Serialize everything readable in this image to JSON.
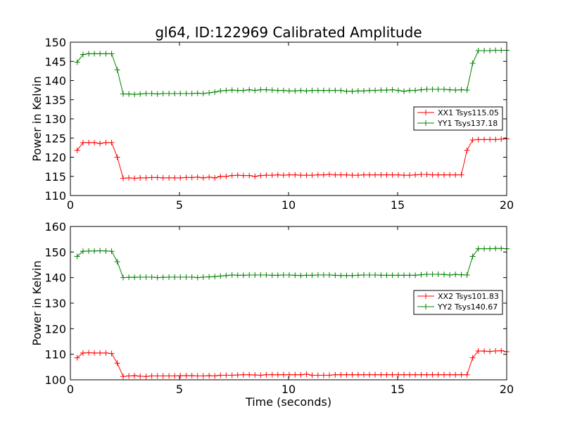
{
  "chart_data": [
    {
      "type": "line",
      "title": "gl64, ID:122969 Calibrated Amplitude",
      "xlabel": "",
      "ylabel": "Power in Kelvin",
      "xlim": [
        0,
        20
      ],
      "ylim": [
        110,
        150
      ],
      "xticks": [
        0,
        5,
        10,
        15,
        20
      ],
      "yticks": [
        110,
        115,
        120,
        125,
        130,
        135,
        140,
        145,
        150
      ],
      "grid": false,
      "legend_position": "right",
      "x": [
        0.31,
        0.58,
        0.84,
        1.1,
        1.36,
        1.63,
        1.89,
        2.15,
        2.42,
        2.68,
        2.94,
        3.2,
        3.47,
        3.73,
        3.99,
        4.25,
        4.52,
        4.78,
        5.04,
        5.31,
        5.57,
        5.83,
        6.09,
        6.36,
        6.62,
        6.88,
        7.14,
        7.41,
        7.67,
        7.93,
        8.2,
        8.46,
        8.72,
        8.98,
        9.25,
        9.51,
        9.77,
        10.03,
        10.3,
        10.56,
        10.82,
        11.08,
        11.35,
        11.61,
        11.87,
        12.14,
        12.4,
        12.66,
        12.92,
        13.19,
        13.45,
        13.71,
        13.97,
        14.24,
        14.5,
        14.76,
        15.03,
        15.29,
        15.55,
        15.81,
        16.08,
        16.34,
        16.6,
        16.86,
        17.13,
        17.39,
        17.65,
        17.92,
        18.18,
        18.44,
        18.7,
        18.97,
        19.23,
        19.49,
        19.75,
        20.0
      ],
      "series": [
        {
          "name": "XX1 Tsys115.05",
          "color": "#ff0000",
          "values": [
            121.8,
            123.8,
            123.8,
            123.8,
            123.6,
            123.8,
            123.8,
            120.0,
            114.5,
            114.6,
            114.5,
            114.6,
            114.6,
            114.7,
            114.7,
            114.6,
            114.6,
            114.6,
            114.6,
            114.7,
            114.7,
            114.8,
            114.6,
            114.8,
            114.6,
            115.0,
            115.0,
            115.2,
            115.3,
            115.2,
            115.2,
            115.0,
            115.2,
            115.3,
            115.3,
            115.4,
            115.3,
            115.4,
            115.4,
            115.3,
            115.3,
            115.3,
            115.4,
            115.4,
            115.5,
            115.4,
            115.4,
            115.4,
            115.3,
            115.3,
            115.4,
            115.4,
            115.4,
            115.4,
            115.4,
            115.4,
            115.4,
            115.3,
            115.3,
            115.4,
            115.5,
            115.5,
            115.4,
            115.4,
            115.4,
            115.4,
            115.4,
            115.4,
            121.8,
            124.5,
            124.6,
            124.6,
            124.6,
            124.6,
            124.7,
            124.8
          ]
        },
        {
          "name": "YY1 Tsys137.18",
          "color": "#008000",
          "values": [
            144.8,
            146.8,
            147.0,
            147.0,
            147.0,
            147.0,
            147.0,
            142.8,
            136.5,
            136.5,
            136.4,
            136.5,
            136.6,
            136.6,
            136.5,
            136.6,
            136.6,
            136.6,
            136.6,
            136.6,
            136.6,
            136.7,
            136.6,
            136.8,
            137.0,
            137.3,
            137.4,
            137.5,
            137.4,
            137.4,
            137.6,
            137.4,
            137.6,
            137.6,
            137.5,
            137.4,
            137.4,
            137.3,
            137.3,
            137.4,
            137.3,
            137.4,
            137.4,
            137.4,
            137.4,
            137.4,
            137.4,
            137.2,
            137.2,
            137.3,
            137.3,
            137.4,
            137.4,
            137.5,
            137.5,
            137.6,
            137.4,
            137.2,
            137.4,
            137.4,
            137.6,
            137.7,
            137.7,
            137.7,
            137.7,
            137.6,
            137.5,
            137.6,
            137.5,
            144.5,
            147.8,
            147.8,
            147.8,
            147.9,
            147.9,
            147.9
          ]
        }
      ]
    },
    {
      "type": "line",
      "title": "",
      "xlabel": "Time (seconds)",
      "ylabel": "Power in Kelvin",
      "xlim": [
        0,
        20
      ],
      "ylim": [
        100,
        160
      ],
      "xticks": [
        0,
        5,
        10,
        15,
        20
      ],
      "yticks": [
        100,
        110,
        120,
        130,
        140,
        150,
        160
      ],
      "grid": false,
      "legend_position": "right",
      "x": [
        0.31,
        0.58,
        0.84,
        1.1,
        1.36,
        1.63,
        1.89,
        2.15,
        2.42,
        2.68,
        2.94,
        3.2,
        3.47,
        3.73,
        3.99,
        4.25,
        4.52,
        4.78,
        5.04,
        5.31,
        5.57,
        5.83,
        6.09,
        6.36,
        6.62,
        6.88,
        7.14,
        7.41,
        7.67,
        7.93,
        8.2,
        8.46,
        8.72,
        8.98,
        9.25,
        9.51,
        9.77,
        10.03,
        10.3,
        10.56,
        10.82,
        11.08,
        11.35,
        11.61,
        11.87,
        12.14,
        12.4,
        12.66,
        12.92,
        13.19,
        13.45,
        13.71,
        13.97,
        14.24,
        14.5,
        14.76,
        15.03,
        15.29,
        15.55,
        15.81,
        16.08,
        16.34,
        16.6,
        16.86,
        17.13,
        17.39,
        17.65,
        17.92,
        18.18,
        18.44,
        18.7,
        18.97,
        19.23,
        19.49,
        19.75,
        20.0
      ],
      "series": [
        {
          "name": "XX2 Tsys101.83",
          "color": "#ff0000",
          "values": [
            108.6,
            110.5,
            110.6,
            110.5,
            110.5,
            110.5,
            110.3,
            106.5,
            101.3,
            101.5,
            101.6,
            101.4,
            101.3,
            101.5,
            101.5,
            101.5,
            101.5,
            101.5,
            101.6,
            101.6,
            101.6,
            101.5,
            101.5,
            101.6,
            101.5,
            101.8,
            101.8,
            101.8,
            101.9,
            102.0,
            102.0,
            101.9,
            101.8,
            102.0,
            102.0,
            102.0,
            102.0,
            102.0,
            102.0,
            102.0,
            102.2,
            101.8,
            101.8,
            101.8,
            101.8,
            102.0,
            102.0,
            102.0,
            102.0,
            102.0,
            102.0,
            102.0,
            102.0,
            102.0,
            102.0,
            102.0,
            102.0,
            102.0,
            102.0,
            102.0,
            102.0,
            102.0,
            102.0,
            102.0,
            102.0,
            102.0,
            102.0,
            102.0,
            102.0,
            108.6,
            111.3,
            111.2,
            111.1,
            111.3,
            111.4,
            111.0
          ]
        },
        {
          "name": "YY2 Tsys140.67",
          "color": "#008000",
          "values": [
            148.3,
            150.3,
            150.4,
            150.4,
            150.5,
            150.4,
            150.3,
            146.2,
            140.0,
            140.1,
            140.1,
            140.2,
            140.2,
            140.2,
            140.0,
            140.1,
            140.2,
            140.2,
            140.2,
            140.2,
            140.2,
            140.0,
            140.2,
            140.3,
            140.4,
            140.6,
            140.8,
            141.0,
            140.9,
            140.9,
            141.0,
            141.0,
            141.0,
            141.0,
            140.9,
            140.9,
            141.0,
            141.0,
            140.9,
            140.8,
            140.9,
            140.9,
            141.0,
            141.0,
            141.0,
            140.9,
            140.8,
            140.8,
            140.8,
            140.9,
            141.0,
            141.0,
            141.0,
            140.9,
            140.9,
            140.9,
            140.9,
            140.9,
            140.9,
            140.9,
            141.1,
            141.3,
            141.3,
            141.3,
            141.2,
            141.0,
            141.2,
            141.1,
            141.0,
            148.3,
            151.3,
            151.3,
            151.3,
            151.4,
            151.4,
            151.3
          ]
        }
      ]
    }
  ]
}
